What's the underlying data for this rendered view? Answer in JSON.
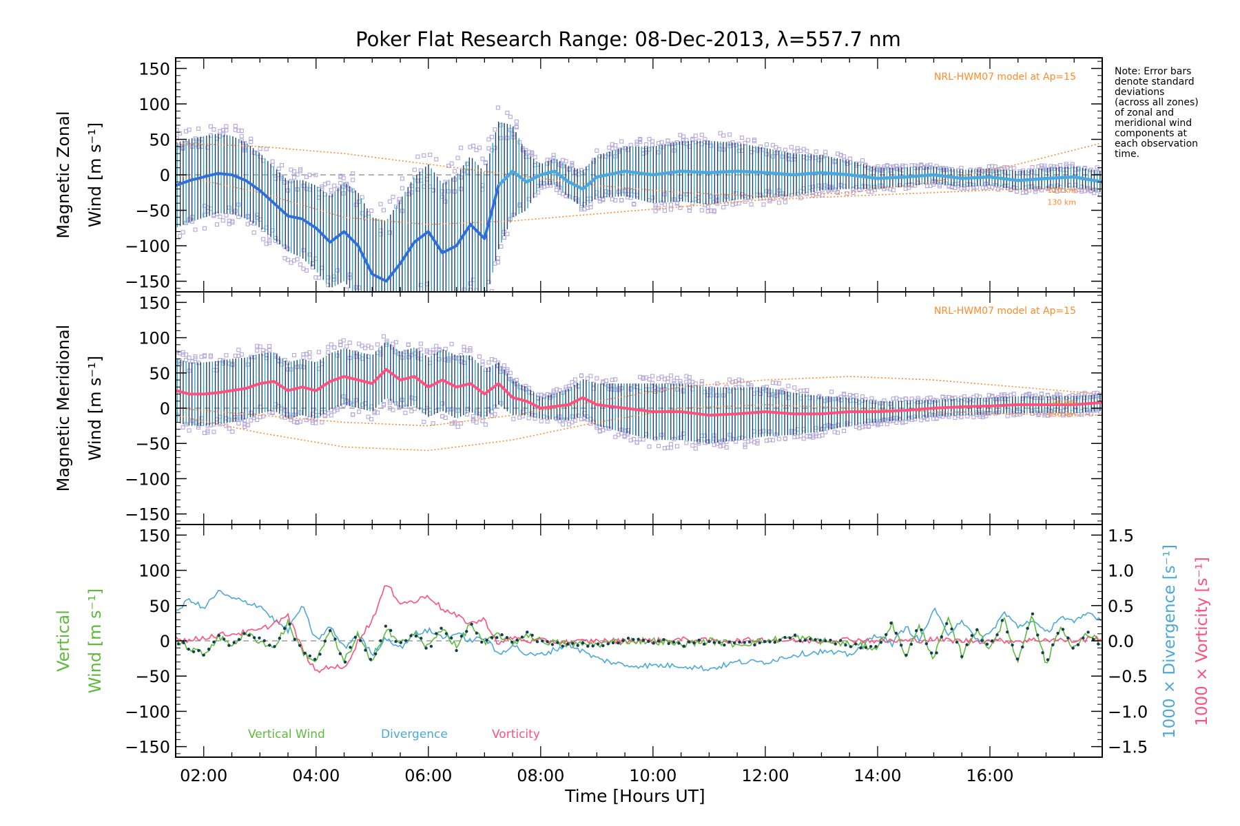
{
  "figure": {
    "title": "Poker Flat Research Range: 08-Dec-2013, λ=557.7 nm",
    "xlabel": "Time [Hours UT]",
    "x_ticks": [
      "02:00",
      "04:00",
      "06:00",
      "08:00",
      "10:00",
      "12:00",
      "14:00",
      "16:00"
    ],
    "note_lines": [
      "Note: Error bars",
      "denote standard",
      "deviations",
      "(across all zones)",
      "of zonal and",
      "meridional wind",
      "components at",
      "each observation",
      "time."
    ]
  },
  "colors": {
    "zonal_mean": "#2e6fe0",
    "zonal_mean_late": "#4aa8e0",
    "meridional_mean": "#ff4f7a",
    "scatter": "#b3a6dc",
    "model": "#ff8a2a",
    "vertical": "#5dbb3a",
    "divergence": "#4aa8d8",
    "vorticity": "#ff4f7a",
    "dots": "#153c57",
    "errorbar_dark": "#1c3f6e",
    "errorbar_light": "#2aa6b8"
  },
  "chart_data": [
    {
      "type": "line",
      "name": "zonal",
      "ylabel": [
        "Magnetic Zonal",
        "Wind [m s⁻¹]"
      ],
      "y_ticks": [
        "150",
        "100",
        "50",
        "0",
        "−50",
        "−100",
        "−150"
      ],
      "ylim": [
        -165,
        165
      ],
      "xlim_hours": [
        1.5,
        18.0
      ],
      "model_label": "NRL-HWM07 model at Ap=15",
      "model_altitude_labels": [
        "120 km",
        "130 km"
      ],
      "mean_wind": {
        "x": [
          1.5,
          1.75,
          2.0,
          2.25,
          2.5,
          2.75,
          3.0,
          3.25,
          3.5,
          3.75,
          4.0,
          4.25,
          4.5,
          4.75,
          5.0,
          5.25,
          5.5,
          5.75,
          6.0,
          6.25,
          6.5,
          6.75,
          7.0,
          7.25,
          7.5,
          7.75,
          8.0,
          8.25,
          8.5,
          8.75,
          9.0,
          9.5,
          10.0,
          10.5,
          11.0,
          11.5,
          12.0,
          12.5,
          13.0,
          13.5,
          14.0,
          14.5,
          15.0,
          15.5,
          16.0,
          16.5,
          17.0,
          17.5,
          18.0
        ],
        "y": [
          -15,
          -8,
          -3,
          2,
          0,
          -8,
          -22,
          -40,
          -58,
          -62,
          -75,
          -95,
          -80,
          -100,
          -140,
          -150,
          -125,
          -95,
          -80,
          -110,
          -100,
          -70,
          -90,
          -15,
          5,
          -10,
          0,
          5,
          -10,
          -20,
          -3,
          5,
          0,
          5,
          3,
          5,
          3,
          0,
          3,
          0,
          -5,
          -3,
          0,
          -5,
          -3,
          -8,
          -5,
          -3,
          -10
        ]
      },
      "std_dev": {
        "x": [
          1.5,
          2.5,
          3.5,
          4.5,
          5.5,
          6.5,
          7.25,
          8.0,
          9.0,
          10.0,
          11.0,
          12.0,
          13.0,
          14.0,
          15.0,
          16.0,
          17.0,
          18.0
        ],
        "y": [
          60,
          55,
          50,
          70,
          90,
          100,
          90,
          15,
          30,
          40,
          45,
          35,
          25,
          15,
          12,
          12,
          15,
          15
        ]
      },
      "model_curves": [
        {
          "name": "120 km",
          "x": [
            1.5,
            3,
            4.5,
            6,
            7.5,
            9,
            10.5,
            12,
            13.5,
            15,
            16.5,
            18
          ],
          "y": [
            45,
            40,
            30,
            15,
            0,
            -15,
            -25,
            -30,
            -25,
            -10,
            15,
            45
          ]
        },
        {
          "name": "130 km",
          "x": [
            1.5,
            3,
            4.5,
            6,
            7.5,
            9,
            10.5,
            12,
            13.5,
            15,
            16.5,
            18
          ],
          "y": [
            0,
            -25,
            -60,
            -70,
            -65,
            -55,
            -45,
            -35,
            -30,
            -25,
            -20,
            -20
          ]
        }
      ]
    },
    {
      "type": "line",
      "name": "meridional",
      "ylabel": [
        "Magnetic Meridional",
        "Wind [m s⁻¹]"
      ],
      "y_ticks": [
        "150",
        "100",
        "50",
        "0",
        "−50",
        "−100",
        "−150"
      ],
      "ylim": [
        -165,
        165
      ],
      "xlim_hours": [
        1.5,
        18.0
      ],
      "model_label": "NRL-HWM07 model at Ap=15",
      "model_altitude_labels": [
        "120 km",
        "130 km"
      ],
      "mean_wind": {
        "x": [
          1.5,
          1.75,
          2.0,
          2.25,
          2.5,
          2.75,
          3.0,
          3.25,
          3.5,
          3.75,
          4.0,
          4.25,
          4.5,
          4.75,
          5.0,
          5.25,
          5.5,
          5.75,
          6.0,
          6.25,
          6.5,
          6.75,
          7.0,
          7.25,
          7.5,
          7.75,
          8.0,
          8.5,
          8.75,
          9.0,
          9.5,
          10.0,
          10.5,
          11.0,
          11.5,
          12.0,
          12.5,
          13.0,
          13.5,
          14.0,
          14.5,
          15.0,
          15.5,
          16.0,
          16.5,
          17.0,
          17.5,
          18.0
        ],
        "y": [
          25,
          20,
          20,
          22,
          25,
          28,
          35,
          38,
          25,
          30,
          25,
          38,
          45,
          40,
          35,
          55,
          40,
          45,
          30,
          40,
          30,
          35,
          20,
          35,
          15,
          10,
          0,
          5,
          15,
          5,
          0,
          -5,
          -5,
          -10,
          -8,
          -5,
          -8,
          -8,
          -5,
          -5,
          -3,
          0,
          2,
          3,
          5,
          5,
          5,
          8
        ]
      },
      "std_dev": {
        "x": [
          1.5,
          2.5,
          3.5,
          4.5,
          5.5,
          6.5,
          7.25,
          8.0,
          9.0,
          10.0,
          11.0,
          12.0,
          13.0,
          14.0,
          15.0,
          16.0,
          17.0,
          18.0
        ],
        "y": [
          45,
          45,
          40,
          40,
          40,
          45,
          30,
          15,
          30,
          40,
          40,
          35,
          25,
          15,
          12,
          12,
          12,
          12
        ]
      },
      "model_curves": [
        {
          "name": "120 km",
          "x": [
            1.5,
            3,
            4.5,
            6,
            7.5,
            9,
            10.5,
            12,
            13.5,
            15,
            16.5,
            18
          ],
          "y": [
            0,
            -10,
            -20,
            -25,
            -10,
            10,
            30,
            40,
            45,
            40,
            30,
            20
          ]
        },
        {
          "name": "130 km",
          "x": [
            1.5,
            3,
            4.5,
            6,
            7.5,
            9,
            10.5,
            12,
            13.5,
            15,
            16.5,
            18
          ],
          "y": [
            -10,
            -35,
            -55,
            -60,
            -45,
            -20,
            0,
            5,
            0,
            -5,
            -8,
            -10
          ]
        }
      ]
    },
    {
      "type": "line",
      "name": "vertical",
      "ylabel": [
        "Vertical",
        "Wind [m s⁻¹]"
      ],
      "y_ticks": [
        "150",
        "100",
        "50",
        "0",
        "−50",
        "−100",
        "−150"
      ],
      "ylim": [
        -165,
        165
      ],
      "y2label_divergence": "1000 × Divergence [s⁻¹]",
      "y2label_vorticity": "1000 × Vorticity [s⁻¹]",
      "y2_ticks": [
        "1.5",
        "1.0",
        "0.5",
        "0.0",
        "−0.5",
        "−1.0",
        "−1.5"
      ],
      "y2lim": [
        -1.65,
        1.65
      ],
      "xlim_hours": [
        1.5,
        18.0
      ],
      "legend": [
        "Vertical Wind",
        "Divergence",
        "Vorticity"
      ],
      "series": [
        {
          "name": "Vertical Wind",
          "axis": "left",
          "x": [
            1.5,
            1.75,
            2.0,
            2.25,
            2.5,
            2.75,
            3.0,
            3.25,
            3.5,
            3.75,
            4.0,
            4.25,
            4.5,
            4.75,
            5.0,
            5.25,
            5.5,
            5.75,
            6.0,
            6.25,
            6.5,
            6.75,
            7.0,
            7.25,
            7.5,
            7.75,
            8.0,
            8.5,
            9.0,
            9.5,
            10.0,
            10.5,
            11.0,
            11.5,
            12.0,
            12.5,
            13.0,
            13.5,
            14.0,
            14.25,
            14.5,
            14.75,
            15.0,
            15.25,
            15.5,
            15.75,
            16.0,
            16.25,
            16.5,
            16.75,
            17.0,
            17.25,
            17.5,
            17.75,
            18.0
          ],
          "y": [
            0,
            -10,
            -20,
            5,
            -5,
            10,
            0,
            -10,
            25,
            -15,
            -30,
            15,
            -30,
            10,
            -35,
            20,
            -5,
            10,
            -10,
            20,
            -10,
            25,
            -5,
            10,
            -5,
            10,
            0,
            -5,
            -5,
            0,
            0,
            -5,
            0,
            -5,
            0,
            5,
            0,
            -5,
            -10,
            25,
            -20,
            20,
            -25,
            30,
            -20,
            15,
            -10,
            30,
            -30,
            40,
            -35,
            20,
            -10,
            10,
            -5
          ]
        },
        {
          "name": "Divergence",
          "axis": "right",
          "x": [
            1.5,
            1.75,
            2.0,
            2.25,
            2.5,
            2.75,
            3.0,
            3.25,
            3.5,
            3.75,
            4.0,
            4.25,
            4.5,
            4.75,
            5.0,
            5.25,
            5.5,
            5.75,
            6.0,
            6.25,
            6.5,
            6.75,
            7.0,
            7.25,
            7.5,
            7.75,
            8.0,
            8.5,
            9.0,
            9.5,
            10.0,
            10.5,
            11.0,
            11.5,
            12.0,
            12.5,
            13.0,
            13.5,
            14.0,
            14.25,
            14.5,
            14.75,
            15.0,
            15.25,
            15.5,
            15.75,
            16.0,
            16.25,
            16.5,
            16.75,
            17.0,
            17.25,
            17.5,
            17.75,
            18.0
          ],
          "y": [
            0.4,
            0.6,
            0.45,
            0.7,
            0.6,
            0.55,
            0.5,
            0.3,
            0.15,
            0.5,
            0.0,
            0.2,
            -0.1,
            0.1,
            -0.2,
            0.05,
            -0.1,
            0.1,
            0.15,
            0.05,
            0.1,
            0.0,
            0.05,
            -0.2,
            -0.05,
            -0.2,
            -0.2,
            -0.05,
            -0.25,
            -0.35,
            -0.35,
            -0.35,
            -0.4,
            -0.3,
            -0.3,
            -0.2,
            -0.15,
            -0.2,
            0.1,
            -0.05,
            0.2,
            0.0,
            0.45,
            0.1,
            0.3,
            0.0,
            0.1,
            0.4,
            0.2,
            0.3,
            0.1,
            0.35,
            0.25,
            0.4,
            0.3
          ]
        },
        {
          "name": "Vorticity",
          "axis": "right",
          "x": [
            1.5,
            1.75,
            2.0,
            2.25,
            2.5,
            2.75,
            3.0,
            3.25,
            3.5,
            3.75,
            4.0,
            4.25,
            4.5,
            4.75,
            5.0,
            5.25,
            5.5,
            5.75,
            6.0,
            6.25,
            6.5,
            6.75,
            7.0,
            7.25,
            7.5,
            7.75,
            8.0,
            8.5,
            9.0,
            9.5,
            10.0,
            10.5,
            11.0,
            11.5,
            12.0,
            12.5,
            13.0,
            13.5,
            14.0,
            14.5,
            15.0,
            15.5,
            16.0,
            16.5,
            17.0,
            17.5,
            18.0
          ],
          "y": [
            0.05,
            0.0,
            0.05,
            0.08,
            0.1,
            0.12,
            0.15,
            0.25,
            0.35,
            -0.1,
            -0.45,
            -0.35,
            -0.4,
            0.0,
            0.3,
            0.8,
            0.55,
            0.55,
            0.65,
            0.45,
            0.35,
            0.25,
            0.3,
            -0.05,
            0.05,
            0.0,
            0.0,
            -0.02,
            0.0,
            0.0,
            0.0,
            0.02,
            0.0,
            0.0,
            0.02,
            0.0,
            0.0,
            0.02,
            0.0,
            0.0,
            0.02,
            0.0,
            0.0,
            0.0,
            0.02,
            0.0,
            0.05
          ]
        }
      ]
    }
  ]
}
